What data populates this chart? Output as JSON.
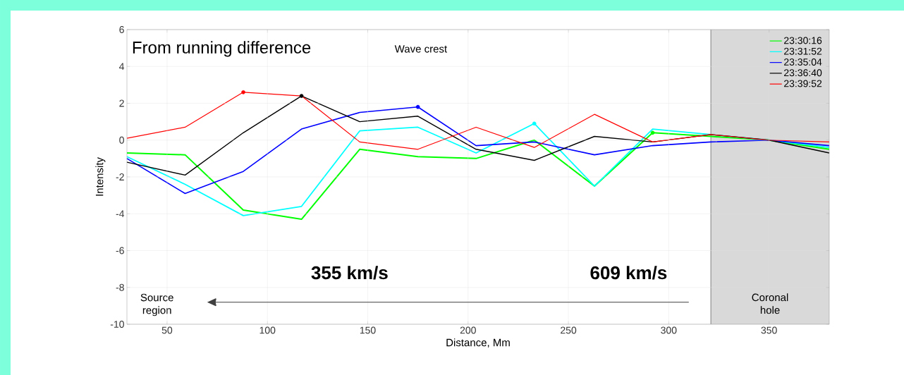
{
  "chart_data": {
    "type": "line",
    "xlabel": "Distance, Mm",
    "ylabel": "Intensity",
    "x": [
      30,
      59,
      88,
      117,
      146,
      175,
      204,
      233,
      263,
      292,
      321,
      350,
      380
    ],
    "series": [
      {
        "name": "23:30:16",
        "color": "#00ff00",
        "values": [
          -0.7,
          -0.8,
          -3.8,
          -4.3,
          -0.5,
          -0.9,
          -1.0,
          0.0,
          -2.5,
          0.4,
          0.2,
          0.0,
          -0.5
        ]
      },
      {
        "name": "23:31:52",
        "color": "#00ffff",
        "values": [
          -0.9,
          -2.4,
          -4.1,
          -3.6,
          0.5,
          0.7,
          -0.7,
          0.9,
          -2.5,
          0.6,
          0.3,
          0.0,
          -0.4
        ]
      },
      {
        "name": "23:35:04",
        "color": "#0000ff",
        "values": [
          -1.0,
          -2.9,
          -1.7,
          0.6,
          1.5,
          1.8,
          -0.3,
          -0.1,
          -0.8,
          -0.3,
          -0.1,
          0.0,
          -0.3
        ]
      },
      {
        "name": "23:36:40",
        "color": "#000000",
        "values": [
          -1.2,
          -1.9,
          0.4,
          2.4,
          1.0,
          1.3,
          -0.5,
          -1.1,
          0.2,
          -0.1,
          0.3,
          0.0,
          -0.7
        ]
      },
      {
        "name": "23:39:52",
        "color": "#ff0000",
        "values": [
          0.1,
          0.7,
          2.6,
          2.4,
          -0.1,
          -0.5,
          0.7,
          -0.4,
          1.4,
          -0.1,
          0.3,
          0.0,
          -0.1
        ]
      },
      {
        "type": "scatter",
        "marker": "circle",
        "x": [
          88,
          117,
          175,
          233,
          292
        ],
        "values": [
          2.6,
          2.4,
          1.8,
          0.9,
          0.4
        ],
        "colors": [
          "#ff0000",
          "#000000",
          "#0000ff",
          "#00ffff",
          "#00ff00"
        ]
      }
    ],
    "xlim": [
      30,
      380
    ],
    "ylim": [
      -10,
      6
    ],
    "xticks": [
      50,
      100,
      150,
      200,
      250,
      300,
      350
    ],
    "yticks": [
      -10,
      -8,
      -6,
      -4,
      -2,
      0,
      2,
      4,
      6
    ],
    "ref_lines": [
      {
        "axis": "x",
        "value": 321,
        "color": "#808080"
      }
    ],
    "bands": [
      {
        "axis": "x",
        "from": 321,
        "to": 380,
        "label": "Coronal hole",
        "color": "#d9d9d9"
      }
    ],
    "annotations": [
      "From running difference",
      "Wave crest",
      "355 km/s",
      "609 km/s",
      "Source region"
    ],
    "grid": true,
    "legend": "top right"
  }
}
